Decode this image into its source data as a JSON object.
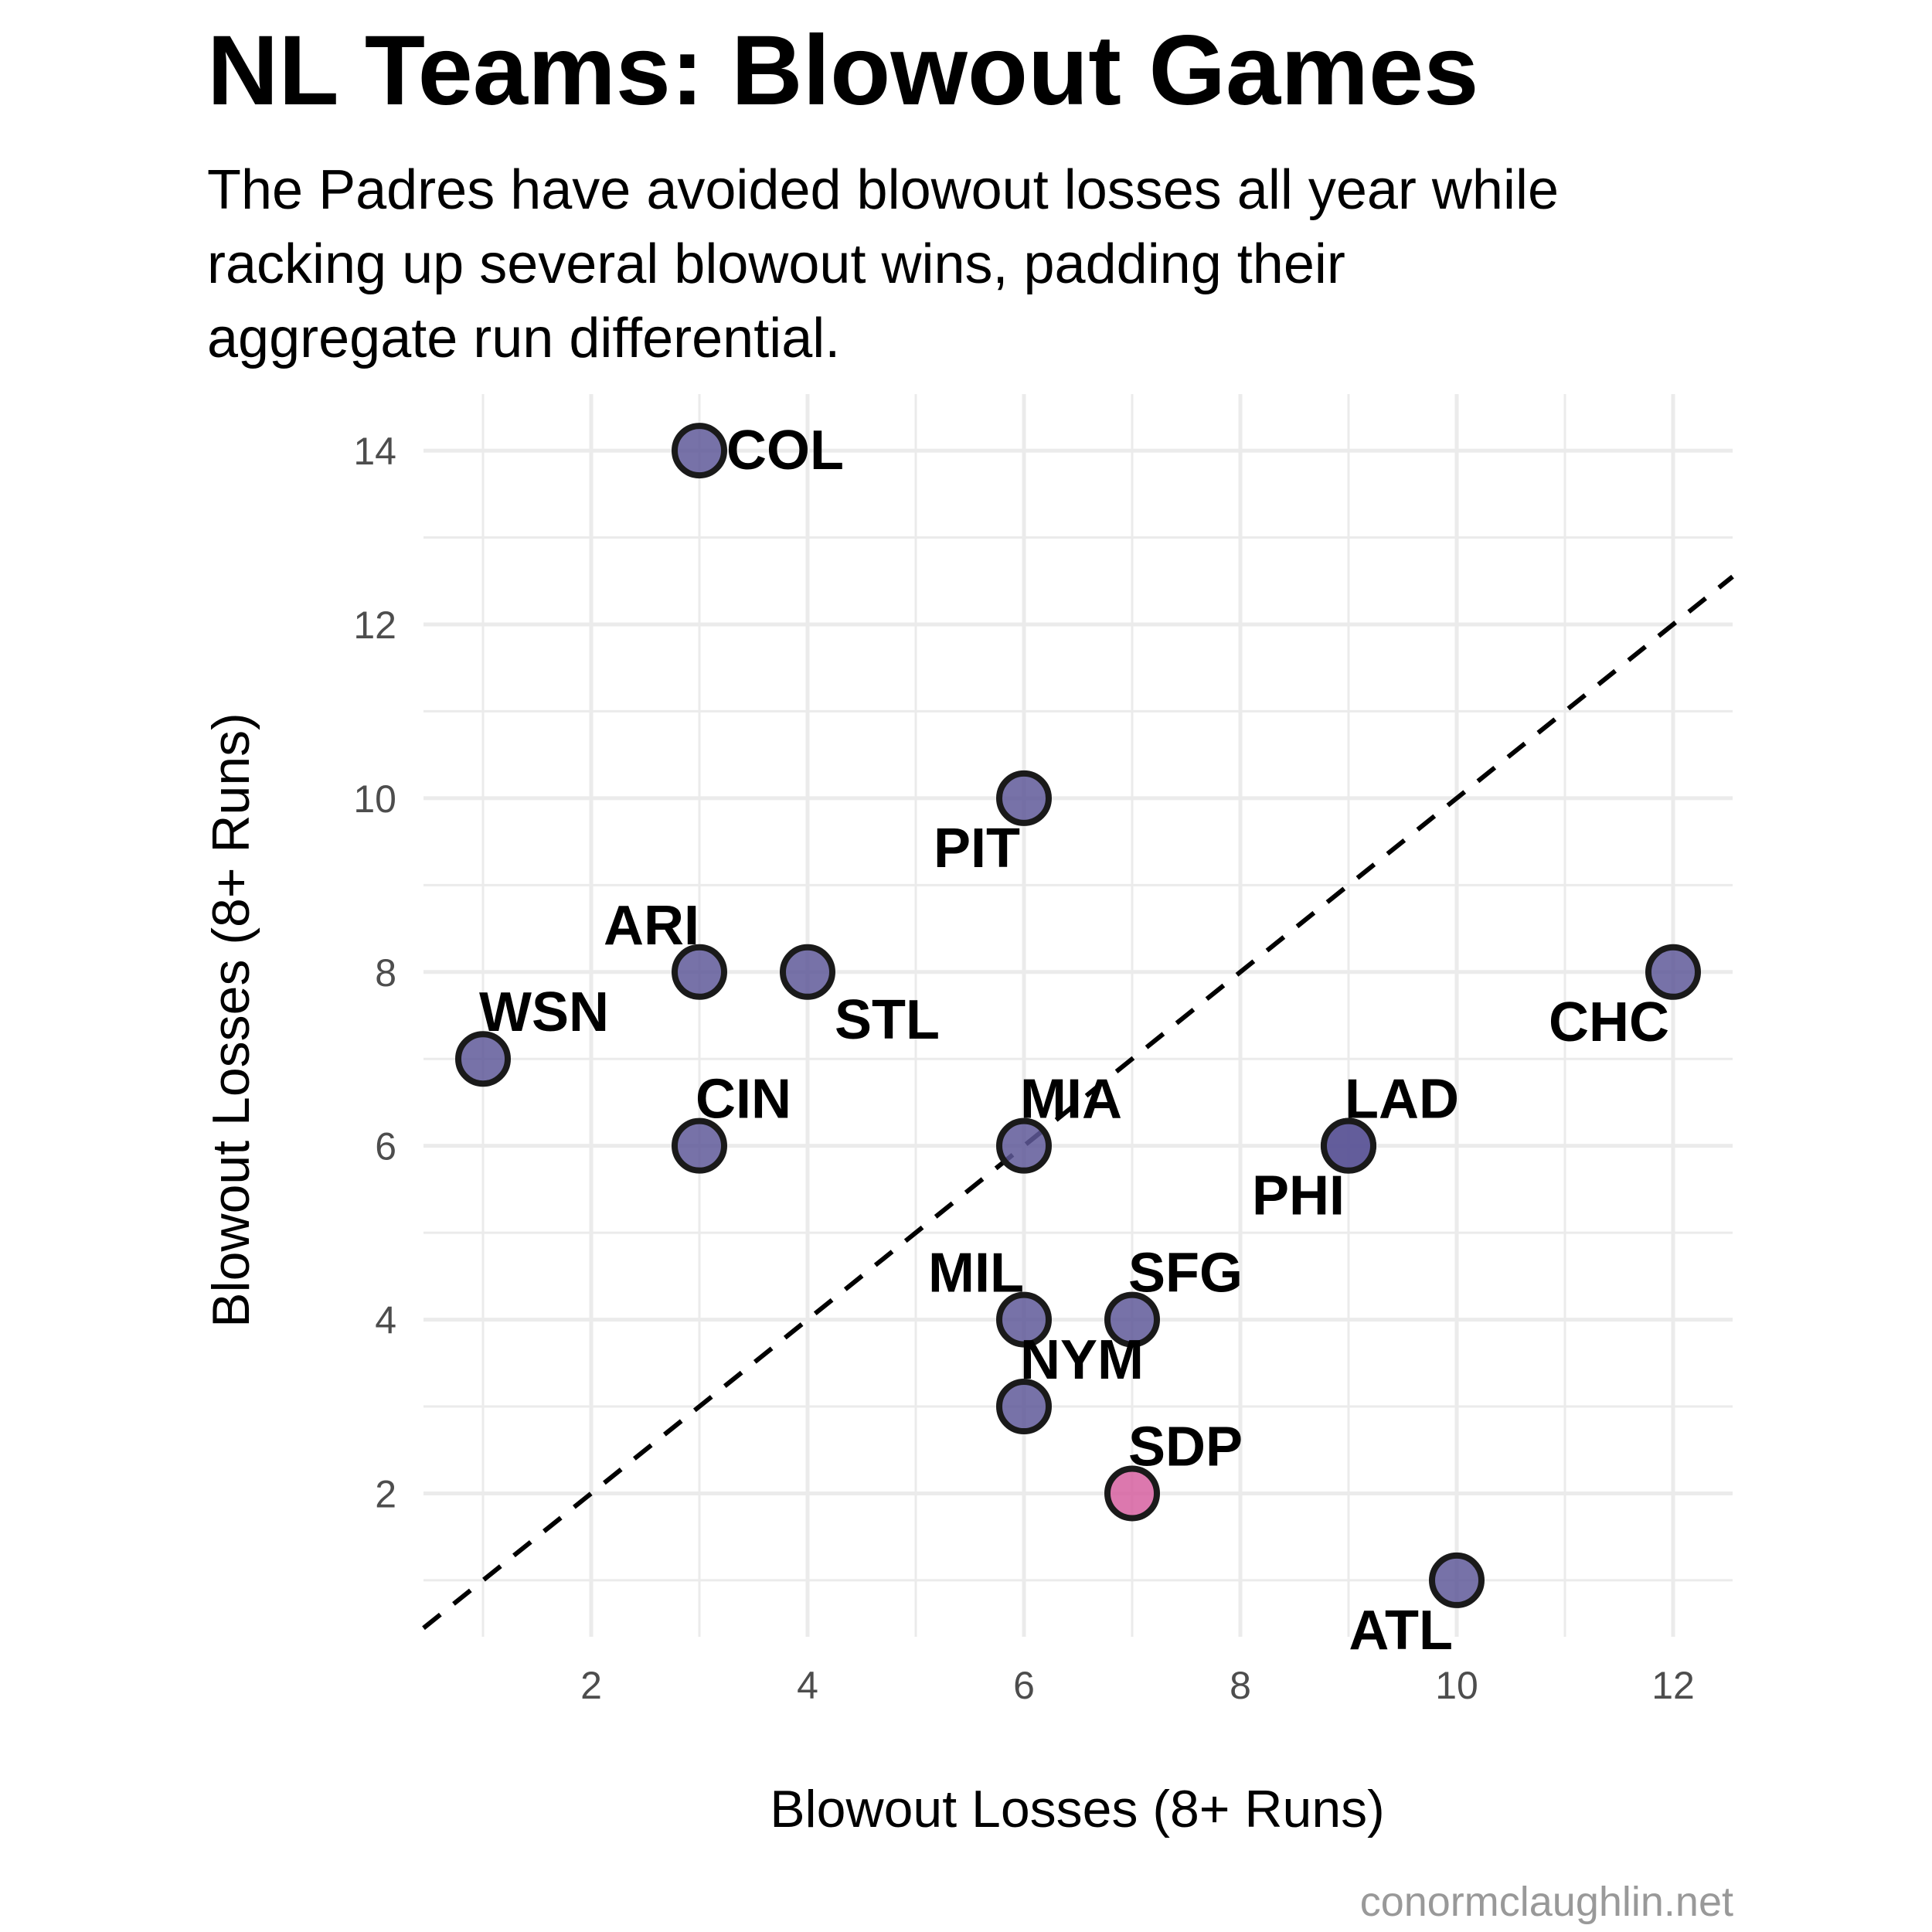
{
  "title": "NL Teams: Blowout Games",
  "subtitle": "The Padres have avoided blowout losses all year while\nracking up several blowout wins, padding their\naggregate run differential.",
  "caption": "conormclaughlin.net",
  "colors": {
    "default_point": "#5f5999",
    "highlight_point": "#d660a0",
    "point_stroke": "#1a1a1a",
    "grid": "#ebebeb",
    "reference_line": "#000000"
  },
  "chart_data": {
    "type": "scatter",
    "title": "NL Teams: Blowout Games",
    "xlabel": "Blowout Losses (8+ Runs)",
    "ylabel": "Blowout Losses (8+ Runs)",
    "xlim": [
      0.45,
      12.55
    ],
    "ylim": [
      0.35,
      14.65
    ],
    "x_ticks": [
      2,
      4,
      6,
      8,
      10,
      12
    ],
    "y_ticks": [
      2,
      4,
      6,
      8,
      10,
      12,
      14
    ],
    "grid": true,
    "reference_line": {
      "type": "y=x",
      "style": "dashed"
    },
    "points": [
      {
        "label": "COL",
        "x": 3,
        "y": 14,
        "highlight": false,
        "label_pos": "right"
      },
      {
        "label": "PIT",
        "x": 6,
        "y": 10,
        "highlight": false,
        "label_pos": "below-left"
      },
      {
        "label": "ARI",
        "x": 3,
        "y": 8,
        "highlight": false,
        "label_pos": "above-left"
      },
      {
        "label": "STL",
        "x": 4,
        "y": 8,
        "highlight": false,
        "label_pos": "below-right"
      },
      {
        "label": "CHC",
        "x": 12,
        "y": 8,
        "highlight": false,
        "label_pos": "below-left"
      },
      {
        "label": "WSN",
        "x": 1,
        "y": 7,
        "highlight": false,
        "label_pos": "above-right"
      },
      {
        "label": "CIN",
        "x": 3,
        "y": 6,
        "highlight": false,
        "label_pos": "above-right"
      },
      {
        "label": "MIA",
        "x": 6,
        "y": 6,
        "highlight": false,
        "label_pos": "above-right"
      },
      {
        "label": "LAD",
        "x": 9,
        "y": 6,
        "highlight": false,
        "label_pos": "above-right"
      },
      {
        "label": "PHI",
        "x": 9,
        "y": 6,
        "highlight": false,
        "label_pos": "below-left"
      },
      {
        "label": "MIL",
        "x": 6,
        "y": 4,
        "highlight": false,
        "label_pos": "above-left"
      },
      {
        "label": "SFG",
        "x": 7,
        "y": 4,
        "highlight": false,
        "label_pos": "above-right"
      },
      {
        "label": "NYM",
        "x": 6,
        "y": 3,
        "highlight": false,
        "label_pos": "above-right"
      },
      {
        "label": "SDP",
        "x": 7,
        "y": 2,
        "highlight": true,
        "label_pos": "above-right"
      },
      {
        "label": "ATL",
        "x": 10,
        "y": 1,
        "highlight": false,
        "label_pos": "below-left"
      }
    ]
  }
}
